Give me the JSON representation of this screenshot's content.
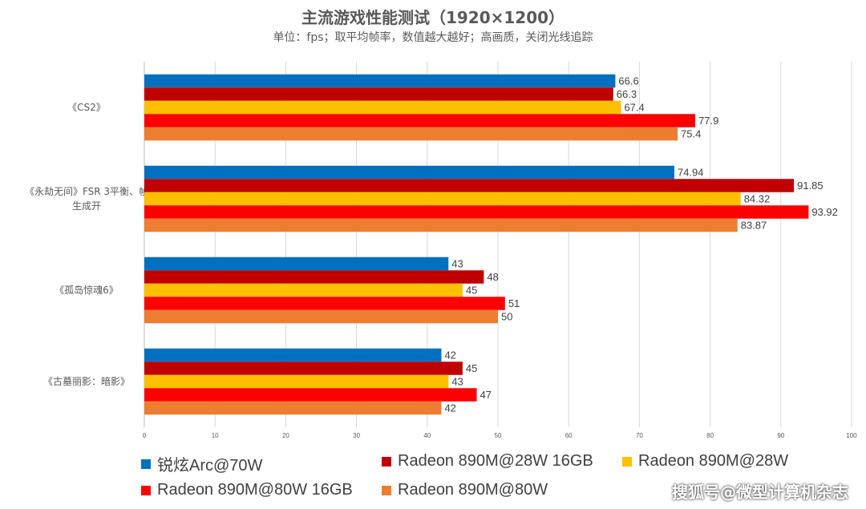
{
  "title": "主流游戏性能测试（1920×1200）",
  "subtitle": "单位：fps；取平均帧率，数值越大越好；高画质，关闭光线追踪",
  "watermark": "搜狐号@微型计算机杂志",
  "chart_data": {
    "type": "bar",
    "orientation": "horizontal",
    "categories": [
      [
        "《CS2》"
      ],
      [
        "《永劫无间》FSR 3平衡、帧",
        "生成开"
      ],
      [
        "《孤岛惊魂6》"
      ],
      [
        "《古墓丽影：暗影》"
      ]
    ],
    "series": [
      {
        "name": "锐炫Arc@70W",
        "color": "#0070C0",
        "values": [
          66.6,
          74.94,
          43,
          42
        ],
        "labels": [
          "66.6",
          "74.94",
          "43",
          "42"
        ]
      },
      {
        "name": "Radeon 890M@28W 16GB",
        "color": "#C00000",
        "values": [
          66.3,
          91.85,
          48,
          45
        ],
        "labels": [
          "66.3",
          "91.85",
          "48",
          "45"
        ]
      },
      {
        "name": "Radeon 890M@28W",
        "color": "#FFC000",
        "values": [
          67.4,
          84.32,
          45,
          43
        ],
        "labels": [
          "67.4",
          "84.32",
          "45",
          "43"
        ]
      },
      {
        "name": "Radeon 890M@80W 16GB",
        "color": "#FF0000",
        "values": [
          77.9,
          93.92,
          51,
          47
        ],
        "labels": [
          "77.9",
          "93.92",
          "51",
          "47"
        ]
      },
      {
        "name": "Radeon 890M@80W",
        "color": "#ED7D31",
        "values": [
          75.4,
          83.87,
          50,
          42
        ],
        "labels": [
          "75.4",
          "83.87",
          "50",
          "42"
        ]
      }
    ],
    "xlim": [
      0,
      100
    ],
    "xticks": [
      "0",
      "10",
      "20",
      "30",
      "40",
      "50",
      "60",
      "70",
      "80",
      "90",
      "100"
    ],
    "grid": true,
    "legend_position": "bottom"
  }
}
